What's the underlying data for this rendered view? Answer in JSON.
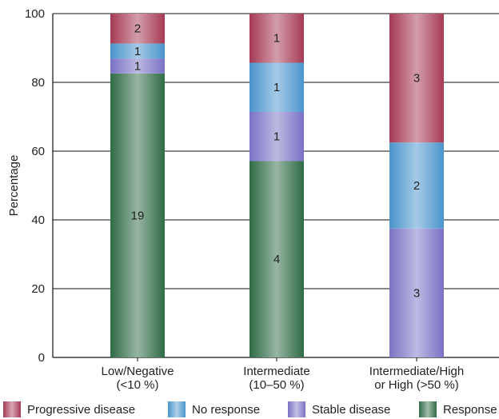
{
  "chart_data": {
    "type": "bar",
    "stacked": true,
    "ylabel": "Percentage",
    "xlabel": "",
    "ylim": [
      0,
      100
    ],
    "yticks": [
      0,
      20,
      40,
      60,
      80,
      100
    ],
    "grid": "horizontal",
    "categories": [
      [
        "Low/Negative",
        "(<10 %)"
      ],
      [
        "Intermediate",
        "(10–50 %)"
      ],
      [
        "Intermediate/High",
        "or High (>50 %)"
      ]
    ],
    "series": [
      {
        "name": "Response",
        "color": "#2e6b45",
        "values": [
          82.6,
          57.1,
          0
        ],
        "counts": [
          19,
          4,
          0
        ]
      },
      {
        "name": "Stable disease",
        "color": "#7a72c4",
        "values": [
          4.35,
          14.3,
          37.5
        ],
        "counts": [
          1,
          1,
          3
        ]
      },
      {
        "name": "No response",
        "color": "#4a94cc",
        "values": [
          4.35,
          14.3,
          25.0
        ],
        "counts": [
          1,
          1,
          2
        ]
      },
      {
        "name": "Progressive disease",
        "color": "#a63a55",
        "values": [
          8.7,
          14.3,
          37.5
        ],
        "counts": [
          2,
          1,
          3
        ]
      }
    ]
  },
  "legend": {
    "items": [
      {
        "label": "Progressive disease",
        "color": "#a63a55"
      },
      {
        "label": "No response",
        "color": "#4a94cc"
      },
      {
        "label": "Stable disease",
        "color": "#7a72c4"
      },
      {
        "label": "Response",
        "color": "#2e6b45"
      }
    ]
  }
}
